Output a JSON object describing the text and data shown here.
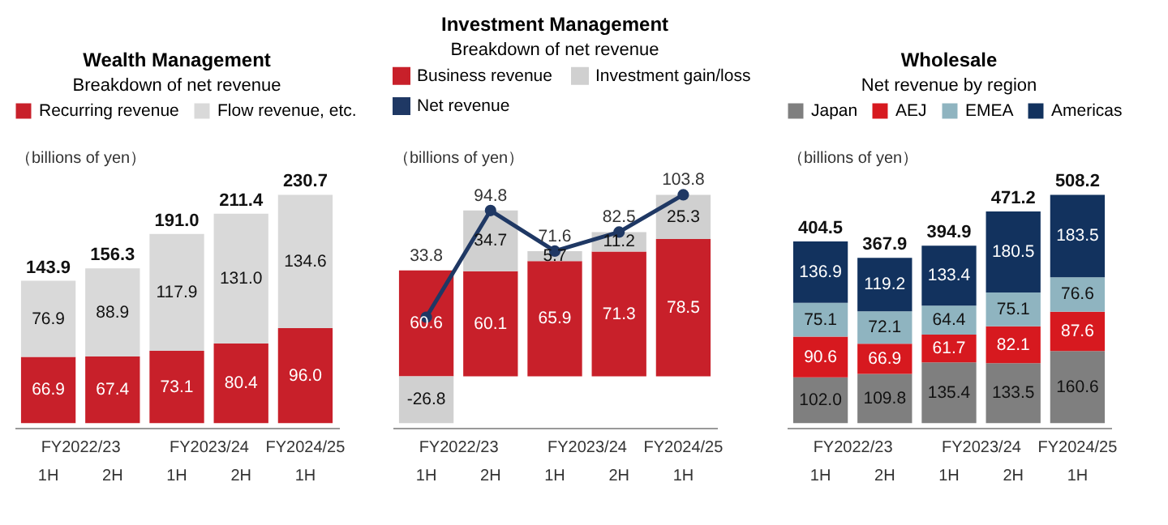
{
  "chart_data": [
    {
      "type": "bar",
      "title": "Wealth Management",
      "subtitle": "Breakdown of net revenue",
      "ylabel": "（billions of yen）",
      "stacked": true,
      "legend": "top",
      "categories": [
        "1H",
        "2H",
        "1H",
        "2H",
        "1H"
      ],
      "annotations": [
        "FY2022/23",
        "FY2023/24",
        "FY2024/25"
      ],
      "series": [
        {
          "name": "Recurring revenue",
          "color": "#c8202a",
          "values": [
            66.9,
            67.4,
            73.1,
            80.4,
            96.0
          ],
          "value_labels": [
            "66.9",
            "67.4",
            "73.1",
            "80.4",
            "96.0"
          ]
        },
        {
          "name": "Flow revenue, etc.",
          "color": "#d9d9d9",
          "values": [
            76.9,
            88.9,
            117.9,
            131.0,
            134.6
          ],
          "value_labels": [
            "76.9",
            "88.9",
            "117.9",
            "131.0",
            "134.6"
          ]
        }
      ],
      "totals": [
        "143.9",
        "156.3",
        "191.0",
        "211.4",
        "230.7"
      ]
    },
    {
      "type": "bar",
      "title": "Investment Management",
      "subtitle": "Breakdown of net revenue",
      "ylabel": "（billions of yen）",
      "stacked": true,
      "legend": "top",
      "categories": [
        "1H",
        "2H",
        "1H",
        "2H",
        "1H"
      ],
      "annotations": [
        "FY2022/23",
        "FY2023/24",
        "FY2024/25"
      ],
      "series": [
        {
          "name": "Business revenue",
          "color": "#c8202a",
          "values": [
            60.6,
            60.1,
            65.9,
            71.3,
            78.5
          ],
          "value_labels": [
            "60.6",
            "60.1",
            "65.9",
            "71.3",
            "78.5"
          ]
        },
        {
          "name": "Investment gain/loss",
          "color": "#d0d0d0",
          "values": [
            -26.8,
            34.7,
            5.7,
            11.2,
            25.3
          ],
          "value_labels": [
            "-26.8",
            "34.7",
            "5.7",
            "11.2",
            "25.3"
          ]
        },
        {
          "name": "Net revenue",
          "type": "line",
          "marker": "circle",
          "color": "#1f3864",
          "values": [
            33.8,
            94.8,
            71.6,
            82.5,
            103.8
          ],
          "value_labels": [
            "33.8",
            "94.8",
            "71.6",
            "82.5",
            "103.8"
          ]
        }
      ]
    },
    {
      "type": "bar",
      "title": "Wholesale",
      "subtitle": "Net revenue by region",
      "ylabel": "（billions of yen）",
      "stacked": true,
      "legend": "top",
      "categories": [
        "1H",
        "2H",
        "1H",
        "2H",
        "1H"
      ],
      "annotations": [
        "FY2022/23",
        "FY2023/24",
        "FY2024/25"
      ],
      "series": [
        {
          "name": "Japan",
          "color": "#7f7f7f",
          "values": [
            102.0,
            109.8,
            135.4,
            133.5,
            160.6
          ],
          "value_labels": [
            "102.0",
            "109.8",
            "135.4",
            "133.5",
            "160.6"
          ]
        },
        {
          "name": "AEJ",
          "color": "#d7191f",
          "values": [
            90.6,
            66.9,
            61.7,
            82.1,
            87.6
          ],
          "value_labels": [
            "90.6",
            "66.9",
            "61.7",
            "82.1",
            "87.6"
          ]
        },
        {
          "name": "EMEA",
          "color": "#8fb4c0",
          "values": [
            75.1,
            72.1,
            64.4,
            75.1,
            76.6
          ],
          "value_labels": [
            "75.1",
            "72.1",
            "64.4",
            "75.1",
            "76.6"
          ]
        },
        {
          "name": "Americas",
          "color": "#12325e",
          "values": [
            136.9,
            119.2,
            133.4,
            180.5,
            183.5
          ],
          "value_labels": [
            "136.9",
            "119.2",
            "133.4",
            "180.5",
            "183.5"
          ]
        }
      ],
      "totals": [
        "404.5",
        "367.9",
        "394.9",
        "471.2",
        "508.2"
      ]
    }
  ]
}
